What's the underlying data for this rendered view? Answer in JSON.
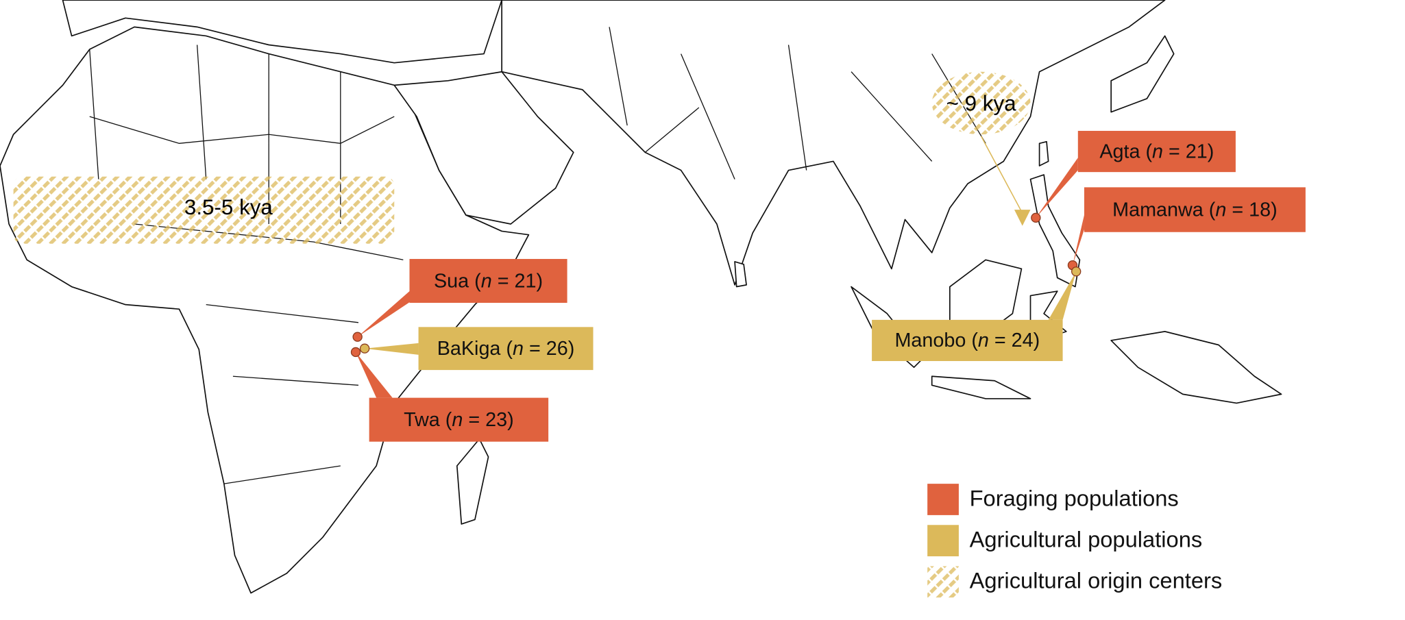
{
  "map": {
    "origin_centers": [
      {
        "label": "3.5-5 kya"
      },
      {
        "label": "~ 9 kya"
      }
    ],
    "populations": [
      {
        "label": [
          "Sua (",
          "n",
          " = 21)"
        ],
        "color": "#e0623e"
      },
      {
        "label": [
          "BaKiga (",
          "n",
          " = 26)"
        ],
        "color": "#dcb95a"
      },
      {
        "label": [
          "Twa (",
          "n",
          " = 23)"
        ],
        "color": "#e0623e"
      },
      {
        "label": [
          "Agta (",
          "n",
          " = 21)"
        ],
        "color": "#e0623e"
      },
      {
        "label": [
          "Mamanwa (",
          "n",
          " = 18)"
        ],
        "color": "#e0623e"
      },
      {
        "label": [
          "Manobo (",
          "n",
          " = 24)"
        ],
        "color": "#dcb95a"
      }
    ],
    "legend": [
      {
        "label": "Foraging populations",
        "color": "#e0623e"
      },
      {
        "label": "Agricultural populations",
        "color": "#dcb95a"
      },
      {
        "label": "Agricultural origin centers",
        "color": "#dcb95a",
        "hatched": true
      }
    ]
  }
}
